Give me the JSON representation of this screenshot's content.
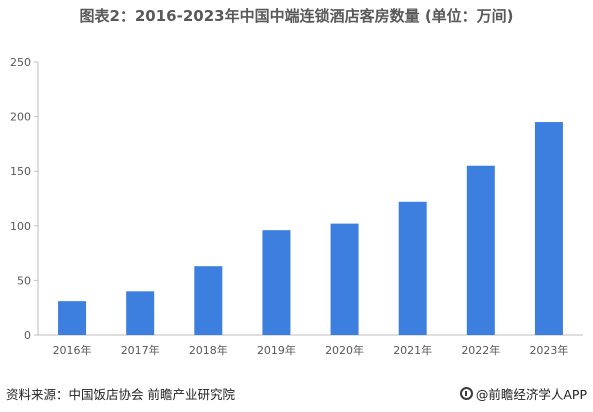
{
  "chart_data": {
    "type": "bar",
    "title": "图表2：2016-2023年中国中端连锁酒店客房数量 (单位：万间)",
    "categories": [
      "2016年",
      "2017年",
      "2018年",
      "2019年",
      "2020年",
      "2021年",
      "2022年",
      "2023年"
    ],
    "values": [
      31,
      40,
      63,
      96,
      102,
      122,
      155,
      195
    ],
    "ylim": [
      0,
      250
    ],
    "yticks": [
      0,
      50,
      100,
      150,
      200,
      250
    ],
    "xlabel": "",
    "ylabel": "",
    "legend": "none",
    "grid": false,
    "colors": {
      "bar": "#3c7fdf",
      "axis": "#bfbfbf",
      "text": "#595959"
    }
  },
  "footer": {
    "source": "资料来源：中国饭店协会 前瞻产业研究院",
    "brand": "@前瞻经济学人APP",
    "brand_icon": "qianzhan-logo-icon"
  }
}
